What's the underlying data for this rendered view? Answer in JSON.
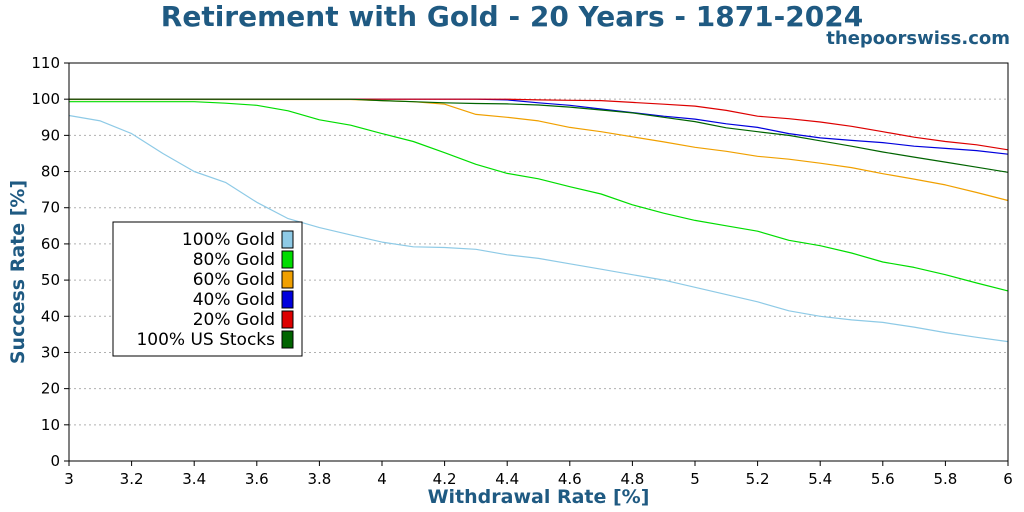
{
  "chart_data": {
    "type": "line",
    "title": "Retirement with Gold - 20 Years - 1871-2024",
    "watermark": "thepoorswiss.com",
    "xlabel": "Withdrawal Rate [%]",
    "ylabel": "Success Rate [%]",
    "xlim": [
      3,
      6
    ],
    "ylim": [
      0,
      110
    ],
    "xticks": [
      3,
      3.2,
      3.4,
      3.6,
      3.8,
      4,
      4.2,
      4.4,
      4.6,
      4.8,
      5,
      5.2,
      5.4,
      5.6,
      5.8,
      6
    ],
    "xtick_labels": [
      "3",
      "3.2",
      "3.4",
      "3.6",
      "3.8",
      "4",
      "4.2",
      "4.4",
      "4.6",
      "4.8",
      "5",
      "5.2",
      "5.4",
      "5.6",
      "5.8",
      "6"
    ],
    "yticks": [
      0,
      10,
      20,
      30,
      40,
      50,
      60,
      70,
      80,
      90,
      100,
      110
    ],
    "ytick_labels": [
      "0",
      "10",
      "20",
      "30",
      "40",
      "50",
      "60",
      "70",
      "80",
      "90",
      "100",
      "110"
    ],
    "grid": "horizontal-dotted",
    "legend_placement": "center-left",
    "x": [
      3.0,
      3.1,
      3.2,
      3.3,
      3.4,
      3.5,
      3.6,
      3.7,
      3.8,
      3.9,
      4.0,
      4.1,
      4.2,
      4.3,
      4.4,
      4.5,
      4.6,
      4.7,
      4.8,
      4.9,
      5.0,
      5.1,
      5.2,
      5.3,
      5.4,
      5.5,
      5.6,
      5.7,
      5.8,
      5.9,
      6.0
    ],
    "series": [
      {
        "name": "100% Gold",
        "color": "#8ecae6",
        "values": [
          95.5,
          94,
          90.5,
          85,
          80,
          77,
          71.5,
          67,
          64.5,
          62.5,
          60.5,
          59.2,
          59,
          58.5,
          57,
          56,
          54.5,
          53,
          51.5,
          50,
          48,
          46,
          44,
          41.5,
          40,
          39,
          38.3,
          37,
          35.5,
          34.2,
          33
        ]
      },
      {
        "name": "80% Gold",
        "color": "#00dd00",
        "values": [
          99.3,
          99.3,
          99.3,
          99.3,
          99.3,
          98.9,
          98.3,
          96.8,
          94.3,
          92.8,
          90.5,
          88.3,
          85.2,
          82,
          79.5,
          78,
          75.8,
          73.8,
          70.8,
          68.5,
          66.5,
          65,
          63.5,
          61,
          59.5,
          57.5,
          55,
          53.5,
          51.5,
          49.2,
          47
        ]
      },
      {
        "name": "60% Gold",
        "color": "#f0a000",
        "values": [
          99.9,
          99.9,
          99.9,
          99.9,
          99.9,
          99.9,
          99.9,
          99.9,
          99.9,
          99.9,
          99.6,
          99.3,
          98.6,
          95.8,
          95,
          94,
          92.2,
          91,
          89.6,
          88.2,
          86.7,
          85.6,
          84.2,
          83.4,
          82.3,
          81.1,
          79.4,
          77.9,
          76.3,
          74.2,
          72
        ]
      },
      {
        "name": "40% Gold",
        "color": "#0000dd",
        "values": [
          100,
          100,
          100,
          100,
          100,
          100,
          100,
          100,
          100,
          100,
          100,
          100,
          100,
          100,
          99.8,
          99,
          98.3,
          97.3,
          96.3,
          95.3,
          94.5,
          93.2,
          92.2,
          90.5,
          89.3,
          88.6,
          88,
          87,
          86.4,
          85.8,
          84.8
        ]
      },
      {
        "name": "20% Gold",
        "color": "#dd0000",
        "values": [
          100,
          100,
          100,
          100,
          100,
          100,
          100,
          100,
          100,
          100,
          100,
          100,
          100,
          100,
          100,
          99.8,
          99.7,
          99.6,
          99.1,
          98.6,
          98.1,
          96.9,
          95.3,
          94.6,
          93.7,
          92.5,
          91,
          89.5,
          88.3,
          87.4,
          86
        ]
      },
      {
        "name": "100% US Stocks",
        "color": "#006400",
        "values": [
          100,
          100,
          100,
          100,
          100,
          100,
          100,
          100,
          100,
          100,
          99.6,
          99.3,
          99,
          98.8,
          98.7,
          98.4,
          97.8,
          97,
          96.2,
          95,
          93.8,
          92.1,
          91,
          90,
          88.5,
          87,
          85.4,
          84,
          82.6,
          81.2,
          79.8
        ]
      }
    ]
  }
}
